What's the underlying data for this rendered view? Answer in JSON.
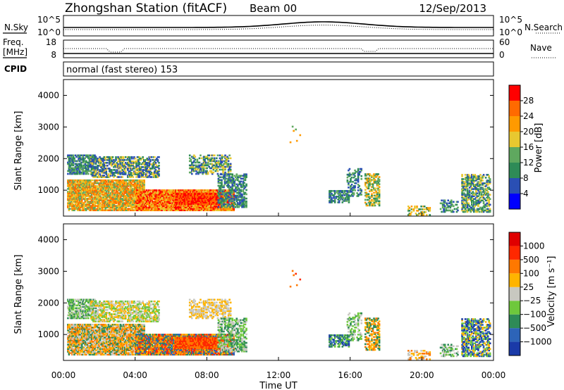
{
  "header": {
    "station": "Zhongshan Station (fitACF)",
    "beam": "Beam 00",
    "date": "12/Sep/2013"
  },
  "sky_panel": {
    "left_label": "N.Sky",
    "right_label": "N.Search",
    "left_ticks": [
      "10^5",
      "10^0"
    ],
    "right_ticks": [
      "10^5",
      "10^0"
    ]
  },
  "freq_panel": {
    "left_label_1": "Freq.",
    "left_label_2": "[MHz]",
    "right_label": "Nave",
    "left_ticks": [
      "18",
      "8"
    ],
    "right_ticks": [
      "60",
      "0"
    ]
  },
  "cpid": {
    "label": "CPID",
    "text": "normal (fast stereo) 153"
  },
  "colors": {
    "power_scale": [
      "#0000ff",
      "#2a4fb4",
      "#2e8b57",
      "#5fa85f",
      "#e8c830",
      "#ff9a00",
      "#ff6a00",
      "#ff0000"
    ],
    "velocity_scale": [
      "#1a3aa8",
      "#2d64b8",
      "#2e8b57",
      "#6ec83c",
      "#c8c8c0",
      "#ffb400",
      "#ff7800",
      "#ff2800",
      "#e00000"
    ]
  },
  "chart_data": [
    {
      "type": "heatmap",
      "name": "power",
      "ylabel": "Slant Range [km]",
      "yticks": [
        "4000",
        "3000",
        "2000",
        "1000"
      ],
      "ylim": [
        180,
        4500
      ],
      "xlim": [
        0,
        24
      ],
      "colorbar": {
        "label": "Power [dB]",
        "ticks": [
          "28",
          "24",
          "20",
          "16",
          "12",
          "8",
          "4"
        ]
      }
    },
    {
      "type": "heatmap",
      "name": "velocity",
      "ylabel": "Slant Range [km]",
      "yticks": [
        "4000",
        "3000",
        "2000",
        "1000"
      ],
      "ylim": [
        180,
        4500
      ],
      "xlim": [
        0,
        24
      ],
      "xticks": [
        "00:00",
        "04:00",
        "08:00",
        "12:00",
        "16:00",
        "20:00",
        "00:00"
      ],
      "xlabel": "Time UT",
      "colorbar": {
        "label": "Velocity [m s⁻¹]",
        "ticks": [
          "1000",
          "500",
          "100",
          "25",
          "−25",
          "−100",
          "−500",
          "−1000"
        ]
      }
    }
  ]
}
